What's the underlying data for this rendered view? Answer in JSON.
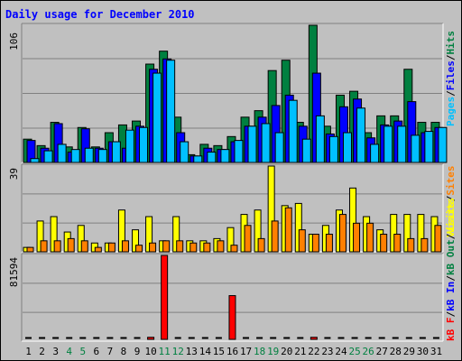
{
  "chart_data": [
    {
      "type": "bar",
      "panel": "hits",
      "title": "Daily usage for December 2010",
      "ymax_label": "106",
      "ylim": [
        0,
        106
      ],
      "legend": [
        "Pages",
        "/",
        "Files",
        "/",
        "Hits"
      ],
      "legend_colors": [
        "#00c0ff",
        "#000000",
        "#0000ff",
        "#000000",
        "#008040"
      ],
      "series": [
        {
          "name": "Hits",
          "color": "#008040",
          "values": [
            18,
            13,
            31,
            12,
            27,
            12,
            23,
            29,
            32,
            76,
            86,
            35,
            6,
            14,
            13,
            20,
            35,
            40,
            71,
            79,
            31,
            106,
            28,
            52,
            55,
            23,
            36,
            36,
            72,
            31,
            31
          ]
        },
        {
          "name": "Files",
          "color": "#0000ff",
          "values": [
            17,
            11,
            30,
            8,
            26,
            11,
            16,
            11,
            28,
            72,
            80,
            23,
            5,
            11,
            10,
            16,
            28,
            35,
            44,
            52,
            28,
            69,
            22,
            43,
            49,
            19,
            29,
            32,
            47,
            23,
            27
          ]
        },
        {
          "name": "Pages",
          "color": "#00c0ff",
          "values": [
            3,
            9,
            14,
            10,
            11,
            10,
            16,
            25,
            27,
            69,
            79,
            16,
            5,
            8,
            10,
            17,
            28,
            30,
            23,
            48,
            18,
            36,
            20,
            23,
            42,
            14,
            28,
            28,
            21,
            24,
            27
          ]
        }
      ]
    },
    {
      "type": "bar",
      "panel": "visits",
      "ymax_label": "39",
      "ylim": [
        0,
        39
      ],
      "legend": [
        "Visits",
        "/",
        "Sites"
      ],
      "legend_colors": [
        "#ffff00",
        "#000000",
        "#ff8000"
      ],
      "series": [
        {
          "name": "Visits",
          "color": "#ffff00",
          "values": [
            2,
            14,
            16,
            9,
            12,
            4,
            4,
            19,
            10,
            16,
            5,
            16,
            5,
            5,
            6,
            11,
            17,
            19,
            39,
            21,
            22,
            8,
            12,
            19,
            29,
            16,
            10,
            17,
            17,
            17,
            16
          ]
        },
        {
          "name": "Sites",
          "color": "#ff8000",
          "values": [
            2,
            5,
            5,
            6,
            5,
            2,
            4,
            5,
            3,
            4,
            5,
            5,
            4,
            4,
            5,
            3,
            12,
            6,
            14,
            20,
            10,
            8,
            8,
            17,
            13,
            13,
            8,
            8,
            6,
            6,
            12
          ]
        }
      ]
    },
    {
      "type": "bar",
      "panel": "kbytes",
      "ymax_label": "81594",
      "ylim": [
        0,
        81594
      ],
      "legend": [
        "kB F",
        "/",
        "kB In",
        "/",
        "kB Out",
        "/",
        "Visits"
      ],
      "legend_colors": [
        "#ff0000",
        "#000000",
        "#0000ff",
        "#000000",
        "#008040",
        "#000000",
        "#ffff00"
      ],
      "series": [
        {
          "name": "kB F",
          "color": "#ff0000",
          "values": [
            0,
            0,
            0,
            0,
            0,
            0,
            0,
            0,
            0,
            2000,
            81594,
            0,
            0,
            0,
            0,
            42500,
            0,
            0,
            0,
            0,
            0,
            2000,
            0,
            0,
            0,
            0,
            0,
            0,
            0,
            0,
            0
          ]
        }
      ],
      "x_labels": [
        "1",
        "2",
        "3",
        "4",
        "5",
        "6",
        "7",
        "8",
        "9",
        "10",
        "11",
        "12",
        "13",
        "14",
        "15",
        "16",
        "17",
        "18",
        "19",
        "20",
        "21",
        "22",
        "23",
        "24",
        "25",
        "26",
        "27",
        "28",
        "29",
        "30",
        "31"
      ],
      "weekend_days": [
        4,
        5,
        11,
        12,
        18,
        19,
        25,
        26
      ]
    }
  ]
}
